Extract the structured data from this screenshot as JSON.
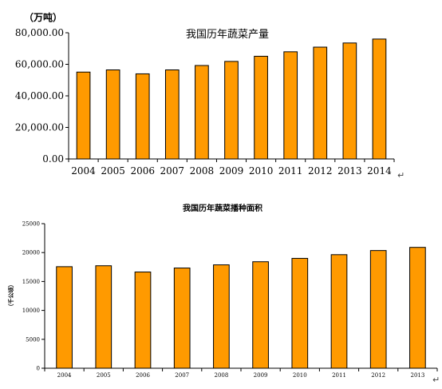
{
  "charts": {
    "production": {
      "unit": "（万吨）",
      "title": "我国历年蔬菜产量"
    },
    "area": {
      "title": "我国历年蔬菜播种面积",
      "ylabel": "（千公顷）"
    }
  },
  "return_marks": [
    "↵",
    "↵"
  ],
  "colors": {
    "bar_fill": "#ff9a00",
    "bar_stroke": "#000000"
  },
  "chart_data": [
    {
      "type": "bar",
      "title": "我国历年蔬菜产量",
      "ylabel": "（万吨）",
      "xlabel": "",
      "categories": [
        "2004",
        "2005",
        "2006",
        "2007",
        "2008",
        "2009",
        "2010",
        "2011",
        "2012",
        "2013",
        "2014"
      ],
      "values": [
        55065,
        56451,
        53953,
        56452,
        59240,
        61824,
        65099,
        67930,
        70883,
        73512,
        76005
      ],
      "ylim": [
        0,
        80000
      ],
      "yticks": [
        "0.00",
        "20,000.00",
        "40,000.00",
        "60,000.00",
        "80,000.00"
      ],
      "ytick_values": [
        0,
        20000,
        40000,
        60000,
        80000
      ],
      "grid": false,
      "legend": "none"
    },
    {
      "type": "bar",
      "title": "我国历年蔬菜播种面积",
      "ylabel": "（千公顷）",
      "xlabel": "",
      "categories": [
        "2004",
        "2005",
        "2006",
        "2007",
        "2008",
        "2009",
        "2010",
        "2011",
        "2012",
        "2013"
      ],
      "values": [
        17560,
        17721,
        16639,
        17329,
        17876,
        18414,
        19000,
        19639,
        20353,
        20899
      ],
      "ylim": [
        0,
        25000
      ],
      "yticks": [
        "0",
        "5000",
        "10000",
        "15000",
        "20000",
        "25000"
      ],
      "ytick_values": [
        0,
        5000,
        10000,
        15000,
        20000,
        25000
      ],
      "grid": false,
      "legend": "none"
    }
  ]
}
